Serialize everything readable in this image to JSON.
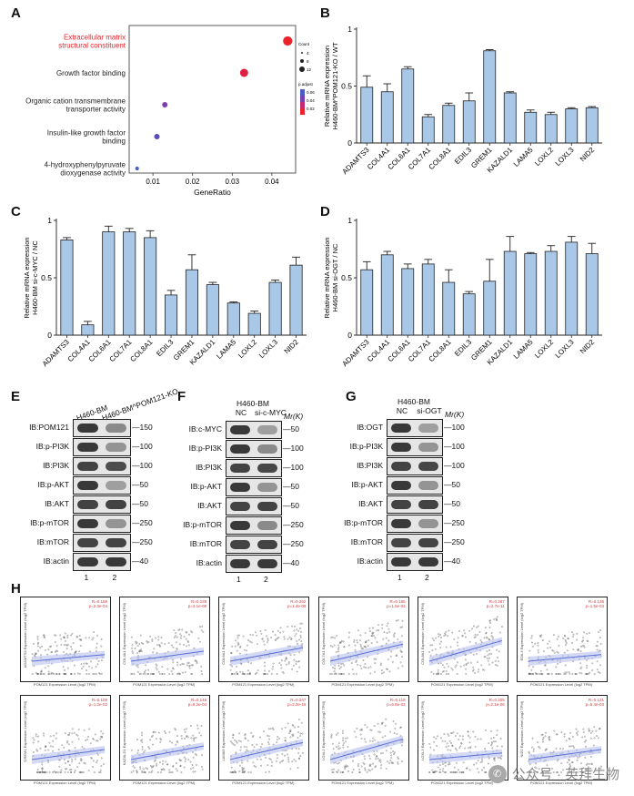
{
  "panels": {
    "A": {
      "label": "A",
      "xlabel": "GeneRatio",
      "xticks": [
        "0.01",
        "0.02",
        "0.03",
        "0.04"
      ],
      "terms": [
        {
          "text": "Extracellular matrix structural constituent",
          "ratio": 0.044,
          "count": 12,
          "color": "#e8232a"
        },
        {
          "text": "Growth factor binding",
          "ratio": 0.033,
          "count": 10,
          "color": "#e02040"
        },
        {
          "text": "Organic cation transmembrane transporter activity",
          "ratio": 0.013,
          "count": 5,
          "color": "#7b3db2"
        },
        {
          "text": "Insulin-like growth factor binding",
          "ratio": 0.011,
          "count": 5,
          "color": "#5a4dbb"
        },
        {
          "text": "4-hydroxyphenylpyruvate dioxygenase activity",
          "ratio": 0.006,
          "count": 2,
          "color": "#4a5ec7"
        }
      ],
      "legend_count": {
        "title": "Count",
        "values": [
          "4",
          "8",
          "12"
        ]
      },
      "legend_padj": {
        "title": "p.adjust",
        "values": [
          "0.06",
          "0.04",
          "0.02"
        ]
      }
    },
    "B": {
      "label": "B",
      "ylabel": "Relative mRNA expression H460-BM^POM121-KO / WT",
      "ylim": [
        0,
        1
      ],
      "yticks": [
        "0",
        "0.5",
        "1"
      ],
      "categories": [
        "ADAMTS3",
        "COL4A1",
        "COL6A1",
        "COL7A1",
        "COL8A1",
        "EDIL3",
        "GREM1",
        "KAZALD1",
        "LAMA5",
        "LOXL2",
        "LOXL3",
        "NID2"
      ],
      "values": [
        0.49,
        0.45,
        0.65,
        0.23,
        0.33,
        0.37,
        0.81,
        0.44,
        0.27,
        0.25,
        0.3,
        0.31
      ],
      "errors": [
        0.1,
        0.07,
        0.02,
        0.02,
        0.02,
        0.07,
        0.01,
        0.01,
        0.02,
        0.02,
        0.01,
        0.01
      ]
    },
    "C": {
      "label": "C",
      "ylabel": "Relative mRNA expression H460-BM si-c-MYC / NC",
      "ylim": [
        0,
        1
      ],
      "yticks": [
        "0",
        "0.5",
        "1"
      ],
      "categories": [
        "ADAMTS3",
        "COL4A1",
        "COL6A1",
        "COL7A1",
        "COL8A1",
        "EDIL3",
        "GREM1",
        "KAZALD1",
        "LAMA5",
        "LOXL2",
        "LOXL3",
        "NID2"
      ],
      "values": [
        0.83,
        0.09,
        0.9,
        0.9,
        0.85,
        0.35,
        0.57,
        0.44,
        0.28,
        0.19,
        0.46,
        0.61
      ],
      "errors": [
        0.02,
        0.03,
        0.05,
        0.03,
        0.06,
        0.04,
        0.13,
        0.02,
        0.01,
        0.02,
        0.02,
        0.07
      ]
    },
    "D": {
      "label": "D",
      "ylabel": "Relative mRNA expression H460-BM si-OGT / NC",
      "ylim": [
        0,
        1
      ],
      "yticks": [
        "0",
        "0.5",
        "1"
      ],
      "categories": [
        "ADAMTS3",
        "COL4A1",
        "COL6A1",
        "COL7A1",
        "COL8A1",
        "EDIL3",
        "GREM1",
        "KAZALD1",
        "LAMA5",
        "LOXL2",
        "LOXL3",
        "NID2"
      ],
      "values": [
        0.57,
        0.7,
        0.58,
        0.62,
        0.46,
        0.36,
        0.47,
        0.73,
        0.71,
        0.73,
        0.81,
        0.71
      ],
      "errors": [
        0.07,
        0.03,
        0.04,
        0.04,
        0.11,
        0.02,
        0.19,
        0.13,
        0.01,
        0.05,
        0.05,
        0.09
      ]
    }
  },
  "blots": {
    "E": {
      "label": "E",
      "header": [
        "H460-BM",
        "H460-BM^POM121-KO"
      ],
      "mw_title": "",
      "rows": [
        {
          "ib": "IB:POM121",
          "mw": "150",
          "bands": [
            0.85,
            0.45
          ]
        },
        {
          "ib": "IB:p-PI3K",
          "mw": "100",
          "bands": [
            0.85,
            0.4
          ]
        },
        {
          "ib": "IB:PI3K",
          "mw": "100",
          "bands": [
            0.8,
            0.75
          ]
        },
        {
          "ib": "IB:p-AKT",
          "mw": "50",
          "bands": [
            0.85,
            0.35
          ]
        },
        {
          "ib": "IB:AKT",
          "mw": "50",
          "bands": [
            0.8,
            0.8
          ]
        },
        {
          "ib": "IB:p-mTOR",
          "mw": "250",
          "bands": [
            0.85,
            0.4
          ]
        },
        {
          "ib": "IB:mTOR",
          "mw": "250",
          "bands": [
            0.8,
            0.8
          ]
        },
        {
          "ib": "IB:actin",
          "mw": "40",
          "bands": [
            0.85,
            0.85
          ]
        }
      ],
      "lanes": [
        "1",
        "2"
      ]
    },
    "F": {
      "label": "F",
      "header": [
        "H460-BM",
        "NC",
        "si-c-MYC"
      ],
      "mw_title": "Mr(K)",
      "rows": [
        {
          "ib": "IB:c-MYC",
          "mw": "50",
          "bands": [
            0.85,
            0.35
          ]
        },
        {
          "ib": "IB:p-PI3K",
          "mw": "100",
          "bands": [
            0.85,
            0.45
          ]
        },
        {
          "ib": "IB:PI3K",
          "mw": "100",
          "bands": [
            0.8,
            0.78
          ]
        },
        {
          "ib": "IB:p-AKT",
          "mw": "50",
          "bands": [
            0.85,
            0.4
          ]
        },
        {
          "ib": "IB:AKT",
          "mw": "50",
          "bands": [
            0.8,
            0.8
          ]
        },
        {
          "ib": "IB:p-mTOR",
          "mw": "250",
          "bands": [
            0.85,
            0.45
          ]
        },
        {
          "ib": "IB:mTOR",
          "mw": "250",
          "bands": [
            0.8,
            0.8
          ]
        },
        {
          "ib": "IB:actin",
          "mw": "40",
          "bands": [
            0.85,
            0.85
          ]
        }
      ],
      "lanes": [
        "1",
        "2"
      ]
    },
    "G": {
      "label": "G",
      "header": [
        "H460-BM",
        "NC",
        "si-OGT"
      ],
      "mw_title": "Mr(K)",
      "rows": [
        {
          "ib": "IB:OGT",
          "mw": "100",
          "bands": [
            0.85,
            0.35
          ]
        },
        {
          "ib": "IB:p-PI3K",
          "mw": "100",
          "bands": [
            0.85,
            0.4
          ]
        },
        {
          "ib": "IB:PI3K",
          "mw": "100",
          "bands": [
            0.8,
            0.78
          ]
        },
        {
          "ib": "IB:p-AKT",
          "mw": "50",
          "bands": [
            0.85,
            0.4
          ]
        },
        {
          "ib": "IB:AKT",
          "mw": "50",
          "bands": [
            0.8,
            0.8
          ]
        },
        {
          "ib": "IB:p-mTOR",
          "mw": "250",
          "bands": [
            0.85,
            0.4
          ]
        },
        {
          "ib": "IB:mTOR",
          "mw": "250",
          "bands": [
            0.8,
            0.8
          ]
        },
        {
          "ib": "IB:actin",
          "mw": "40",
          "bands": [
            0.85,
            0.85
          ]
        }
      ],
      "lanes": [
        "1",
        "2"
      ]
    }
  },
  "panelH": {
    "label": "H",
    "xlabel": "POM121 Expression Level (log2 TPM)",
    "scatter": [
      {
        "gene": "ADAMTS3",
        "stat": "R=0.158\np=2.3e-04"
      },
      {
        "gene": "COL4A1",
        "stat": "R=0.239\np=3.1e-08"
      },
      {
        "gene": "COL6A1",
        "stat": "R=0.262\np=1.4e-09"
      },
      {
        "gene": "COL7A1",
        "stat": "R=0.165\np=1.6e-04"
      },
      {
        "gene": "COL8A1",
        "stat": "R=0.287\np=2.7e-11"
      },
      {
        "gene": "EDIL3",
        "stat": "R=0.138\np=1.5e-03"
      },
      {
        "gene": "GREM1",
        "stat": "R=0.109\np=1.2e-02"
      },
      {
        "gene": "KAZALD1",
        "stat": "R=0.146\np=8.2e-04"
      },
      {
        "gene": "LAMA5",
        "stat": "R=0.347\np=2.2e-16"
      },
      {
        "gene": "LOXL2",
        "stat": "R=0.118\np=6.8e-03"
      },
      {
        "gene": "LOXL3",
        "stat": "R=0.205\np=2.1e-06"
      },
      {
        "gene": "NID2",
        "stat": "R=0.121\np=5.4e-03"
      }
    ]
  },
  "watermark": {
    "icon": "wechat-icon",
    "text": "公众号 · 英拜生物"
  },
  "colors": {
    "bar": "#a9c8e8",
    "bar_edge": "#222222",
    "band": "#1a1a1a",
    "regression": "#5b6fd6"
  }
}
